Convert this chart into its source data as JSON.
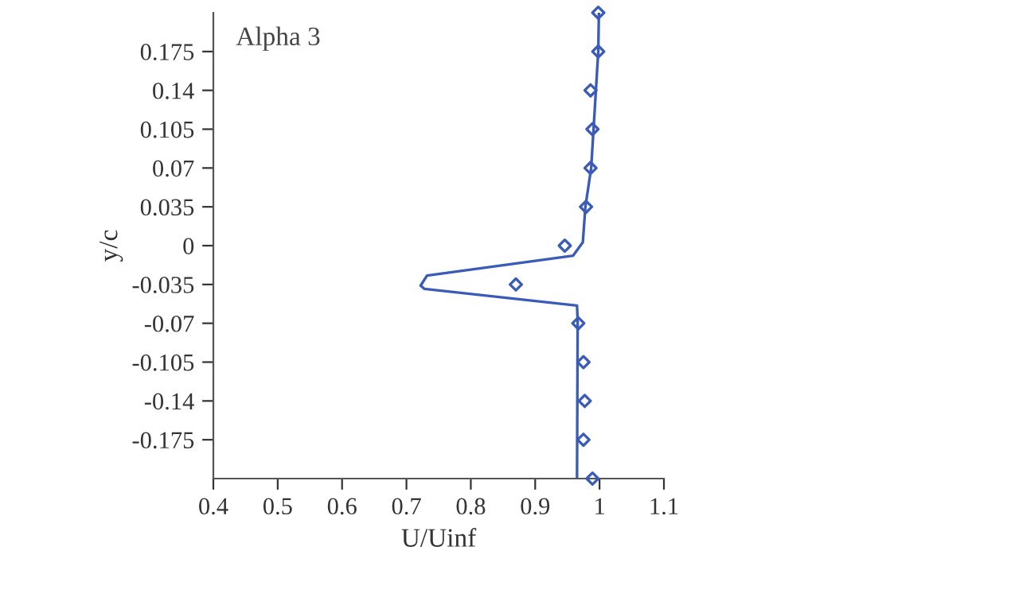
{
  "chart_data": {
    "type": "line",
    "title": "Alpha 3",
    "xlabel": "U/Uinf",
    "ylabel": "y/c",
    "xlim": [
      0.4,
      1.1
    ],
    "xticks": [
      0.4,
      0.5,
      0.6,
      0.7,
      0.8,
      0.9,
      1,
      1.1
    ],
    "ylim": [
      -0.21,
      0.21
    ],
    "yticks": [
      -0.175,
      -0.14,
      -0.105,
      -0.07,
      -0.035,
      0,
      0.035,
      0.07,
      0.105,
      0.14,
      0.175
    ],
    "grid": false,
    "legend": false,
    "series": [
      {
        "type": "scatter",
        "color": "#3a5bb8",
        "marker": "diamond",
        "x": [
          0.998,
          0.998,
          0.986,
          0.989,
          0.986,
          0.979,
          0.946,
          0.87,
          0.967,
          0.975,
          0.977,
          0.975,
          0.989
        ],
        "values": [
          0.21,
          0.175,
          0.14,
          0.105,
          0.07,
          0.035,
          0,
          -0.035,
          -0.07,
          -0.105,
          -0.14,
          -0.175,
          -0.21
        ]
      },
      {
        "color": "#3a5bb8",
        "marker": "none",
        "line_style": "solid",
        "x": [
          0.999,
          0.998,
          0.987,
          0.978,
          0.974,
          0.959,
          0.732,
          0.722,
          0.728,
          0.965,
          0.966,
          0.965
        ],
        "values": [
          0.21,
          0.175,
          0.07,
          0.035,
          0.003,
          -0.009,
          -0.027,
          -0.036,
          -0.039,
          -0.054,
          -0.068,
          -0.21
        ]
      }
    ]
  }
}
